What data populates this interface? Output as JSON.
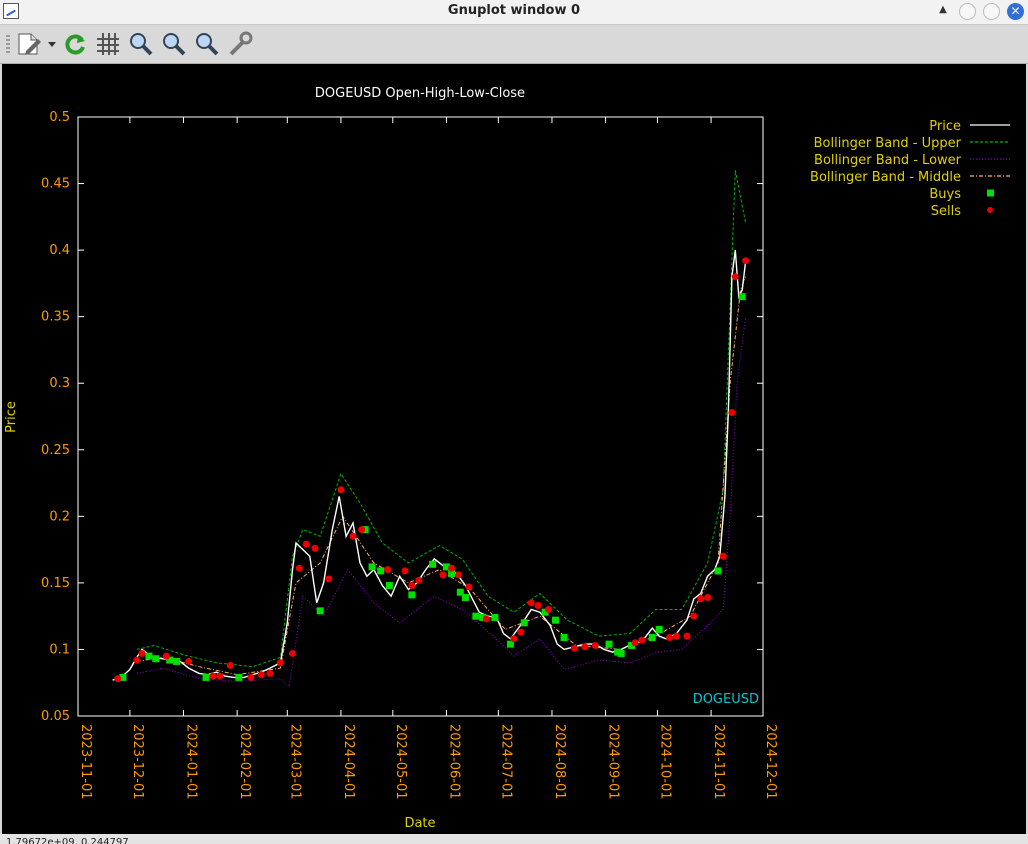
{
  "window": {
    "title": "Gnuplot window 0",
    "close_glyph": "✕",
    "up_glyph": "▲"
  },
  "toolbar": {
    "icons": [
      "export-menu-icon",
      "replot-icon",
      "grid-icon",
      "zoom-previous-icon",
      "zoom-next-icon",
      "autoscale-icon",
      "settings-icon"
    ]
  },
  "status": {
    "text": "1.79672e+09, 0.244797"
  },
  "colors": {
    "background": "#000000",
    "axis_label": "#e0d000",
    "tick_label": "#ff9900",
    "price": "#ffffff",
    "upper": "#00b300",
    "lower": "#9400d3",
    "middle": "#ffb060",
    "buys": "#00e000",
    "sells": "#ee0000",
    "symbol_label": "#00c8d0"
  },
  "chart_data": {
    "type": "line",
    "title": "DOGEUSD Open-High-Low-Close",
    "xlabel": "Date",
    "ylabel": "Price",
    "annotation": "DOGEUSD",
    "ylim": [
      0.05,
      0.5
    ],
    "yticks": [
      "0.05",
      "0.1",
      "0.15",
      "0.2",
      "0.25",
      "0.3",
      "0.35",
      "0.4",
      "0.45",
      "0.5"
    ],
    "xlim": [
      "2023-11-01",
      "2024-12-01"
    ],
    "xticks": [
      "2023-11-01",
      "2023-12-01",
      "2024-01-01",
      "2024-02-01",
      "2024-03-01",
      "2024-04-01",
      "2024-05-01",
      "2024-06-01",
      "2024-07-01",
      "2024-08-01",
      "2024-09-01",
      "2024-10-01",
      "2024-11-01",
      "2024-12-01"
    ],
    "grid": false,
    "legend_position": "top-right, outside",
    "legend": [
      "Price",
      "Bollinger Band - Upper",
      "Bollinger Band - Lower",
      "Bollinger Band - Middle",
      "Buys",
      "Sells"
    ],
    "price_close": [
      [
        "2023-11-21",
        0.077
      ],
      [
        "2023-11-26",
        0.079
      ],
      [
        "2023-12-01",
        0.085
      ],
      [
        "2023-12-05",
        0.094
      ],
      [
        "2023-12-08",
        0.1
      ],
      [
        "2023-12-11",
        0.097
      ],
      [
        "2023-12-15",
        0.094
      ],
      [
        "2023-12-20",
        0.093
      ],
      [
        "2023-12-25",
        0.092
      ],
      [
        "2023-12-30",
        0.091
      ],
      [
        "2024-01-04",
        0.086
      ],
      [
        "2024-01-10",
        0.082
      ],
      [
        "2024-01-15",
        0.081
      ],
      [
        "2024-01-20",
        0.083
      ],
      [
        "2024-01-25",
        0.08
      ],
      [
        "2024-01-30",
        0.079
      ],
      [
        "2024-02-05",
        0.079
      ],
      [
        "2024-02-10",
        0.081
      ],
      [
        "2024-02-15",
        0.083
      ],
      [
        "2024-02-20",
        0.086
      ],
      [
        "2024-02-26",
        0.09
      ],
      [
        "2024-03-01",
        0.12
      ],
      [
        "2024-03-04",
        0.16
      ],
      [
        "2024-03-06",
        0.18
      ],
      [
        "2024-03-10",
        0.175
      ],
      [
        "2024-03-14",
        0.17
      ],
      [
        "2024-03-18",
        0.135
      ],
      [
        "2024-03-22",
        0.15
      ],
      [
        "2024-03-27",
        0.19
      ],
      [
        "2024-03-31",
        0.215
      ],
      [
        "2024-04-04",
        0.185
      ],
      [
        "2024-04-08",
        0.195
      ],
      [
        "2024-04-12",
        0.165
      ],
      [
        "2024-04-16",
        0.155
      ],
      [
        "2024-04-20",
        0.16
      ],
      [
        "2024-04-25",
        0.148
      ],
      [
        "2024-04-30",
        0.14
      ],
      [
        "2024-05-05",
        0.155
      ],
      [
        "2024-05-10",
        0.145
      ],
      [
        "2024-05-15",
        0.15
      ],
      [
        "2024-05-20",
        0.16
      ],
      [
        "2024-05-25",
        0.168
      ],
      [
        "2024-05-30",
        0.163
      ],
      [
        "2024-06-04",
        0.16
      ],
      [
        "2024-06-08",
        0.155
      ],
      [
        "2024-06-12",
        0.148
      ],
      [
        "2024-06-16",
        0.138
      ],
      [
        "2024-06-20",
        0.128
      ],
      [
        "2024-06-25",
        0.125
      ],
      [
        "2024-06-30",
        0.124
      ],
      [
        "2024-07-04",
        0.112
      ],
      [
        "2024-07-08",
        0.108
      ],
      [
        "2024-07-12",
        0.115
      ],
      [
        "2024-07-16",
        0.122
      ],
      [
        "2024-07-20",
        0.13
      ],
      [
        "2024-07-25",
        0.128
      ],
      [
        "2024-07-31",
        0.118
      ],
      [
        "2024-08-04",
        0.104
      ],
      [
        "2024-08-08",
        0.1
      ],
      [
        "2024-08-14",
        0.102
      ],
      [
        "2024-08-20",
        0.104
      ],
      [
        "2024-08-26",
        0.104
      ],
      [
        "2024-08-31",
        0.1
      ],
      [
        "2024-09-05",
        0.098
      ],
      [
        "2024-09-10",
        0.1
      ],
      [
        "2024-09-16",
        0.104
      ],
      [
        "2024-09-22",
        0.106
      ],
      [
        "2024-09-28",
        0.116
      ],
      [
        "2024-10-02",
        0.11
      ],
      [
        "2024-10-06",
        0.108
      ],
      [
        "2024-10-12",
        0.112
      ],
      [
        "2024-10-18",
        0.122
      ],
      [
        "2024-10-22",
        0.138
      ],
      [
        "2024-10-26",
        0.142
      ],
      [
        "2024-10-30",
        0.155
      ],
      [
        "2024-11-03",
        0.16
      ],
      [
        "2024-11-06",
        0.17
      ],
      [
        "2024-11-09",
        0.215
      ],
      [
        "2024-11-11",
        0.28
      ],
      [
        "2024-11-13",
        0.38
      ],
      [
        "2024-11-15",
        0.4
      ],
      [
        "2024-11-17",
        0.365
      ],
      [
        "2024-11-19",
        0.37
      ],
      [
        "2024-11-21",
        0.392
      ]
    ],
    "bollinger_upper": [
      [
        "2023-12-05",
        0.1
      ],
      [
        "2023-12-15",
        0.103
      ],
      [
        "2024-01-01",
        0.096
      ],
      [
        "2024-01-20",
        0.09
      ],
      [
        "2024-02-10",
        0.087
      ],
      [
        "2024-02-26",
        0.094
      ],
      [
        "2024-03-04",
        0.17
      ],
      [
        "2024-03-10",
        0.19
      ],
      [
        "2024-03-20",
        0.185
      ],
      [
        "2024-04-01",
        0.232
      ],
      [
        "2024-04-12",
        0.21
      ],
      [
        "2024-04-25",
        0.18
      ],
      [
        "2024-05-10",
        0.165
      ],
      [
        "2024-05-28",
        0.178
      ],
      [
        "2024-06-10",
        0.168
      ],
      [
        "2024-06-25",
        0.14
      ],
      [
        "2024-07-10",
        0.128
      ],
      [
        "2024-07-25",
        0.142
      ],
      [
        "2024-08-10",
        0.122
      ],
      [
        "2024-08-28",
        0.11
      ],
      [
        "2024-09-15",
        0.112
      ],
      [
        "2024-09-30",
        0.13
      ],
      [
        "2024-10-15",
        0.13
      ],
      [
        "2024-10-30",
        0.165
      ],
      [
        "2024-11-08",
        0.22
      ],
      [
        "2024-11-15",
        0.46
      ],
      [
        "2024-11-21",
        0.42
      ]
    ],
    "bollinger_lower": [
      [
        "2023-12-05",
        0.082
      ],
      [
        "2023-12-20",
        0.086
      ],
      [
        "2024-01-10",
        0.078
      ],
      [
        "2024-02-01",
        0.076
      ],
      [
        "2024-02-26",
        0.078
      ],
      [
        "2024-03-02",
        0.072
      ],
      [
        "2024-03-10",
        0.14
      ],
      [
        "2024-03-22",
        0.125
      ],
      [
        "2024-04-05",
        0.16
      ],
      [
        "2024-04-20",
        0.135
      ],
      [
        "2024-05-05",
        0.12
      ],
      [
        "2024-05-25",
        0.14
      ],
      [
        "2024-06-10",
        0.13
      ],
      [
        "2024-06-28",
        0.11
      ],
      [
        "2024-07-10",
        0.095
      ],
      [
        "2024-07-25",
        0.108
      ],
      [
        "2024-08-08",
        0.085
      ],
      [
        "2024-08-28",
        0.092
      ],
      [
        "2024-09-15",
        0.09
      ],
      [
        "2024-10-01",
        0.098
      ],
      [
        "2024-10-15",
        0.1
      ],
      [
        "2024-10-30",
        0.118
      ],
      [
        "2024-11-08",
        0.13
      ],
      [
        "2024-11-12",
        0.2
      ],
      [
        "2024-11-16",
        0.3
      ],
      [
        "2024-11-21",
        0.35
      ]
    ],
    "bollinger_middle": [
      [
        "2023-12-05",
        0.091
      ],
      [
        "2023-12-20",
        0.094
      ],
      [
        "2024-01-10",
        0.087
      ],
      [
        "2024-02-01",
        0.081
      ],
      [
        "2024-02-26",
        0.086
      ],
      [
        "2024-03-06",
        0.15
      ],
      [
        "2024-03-20",
        0.165
      ],
      [
        "2024-04-02",
        0.2
      ],
      [
        "2024-04-20",
        0.165
      ],
      [
        "2024-05-10",
        0.15
      ],
      [
        "2024-05-28",
        0.16
      ],
      [
        "2024-06-15",
        0.145
      ],
      [
        "2024-07-05",
        0.115
      ],
      [
        "2024-07-25",
        0.125
      ],
      [
        "2024-08-15",
        0.103
      ],
      [
        "2024-09-10",
        0.1
      ],
      [
        "2024-09-30",
        0.11
      ],
      [
        "2024-10-20",
        0.125
      ],
      [
        "2024-11-05",
        0.165
      ],
      [
        "2024-11-12",
        0.3
      ],
      [
        "2024-11-18",
        0.37
      ],
      [
        "2024-11-21",
        0.38
      ]
    ],
    "buys": [
      [
        "2023-11-27",
        0.079
      ],
      [
        "2023-12-12",
        0.095
      ],
      [
        "2023-12-16",
        0.093
      ],
      [
        "2023-12-24",
        0.092
      ],
      [
        "2023-12-28",
        0.091
      ],
      [
        "2024-01-14",
        0.079
      ],
      [
        "2024-02-02",
        0.079
      ],
      [
        "2024-03-20",
        0.129
      ],
      [
        "2024-04-15",
        0.19
      ],
      [
        "2024-04-19",
        0.162
      ],
      [
        "2024-04-24",
        0.159
      ],
      [
        "2024-04-29",
        0.148
      ],
      [
        "2024-05-12",
        0.141
      ],
      [
        "2024-05-24",
        0.164
      ],
      [
        "2024-06-01",
        0.162
      ],
      [
        "2024-06-04",
        0.157
      ],
      [
        "2024-06-09",
        0.143
      ],
      [
        "2024-06-12",
        0.139
      ],
      [
        "2024-06-18",
        0.125
      ],
      [
        "2024-06-22",
        0.124
      ],
      [
        "2024-06-29",
        0.124
      ],
      [
        "2024-07-08",
        0.104
      ],
      [
        "2024-07-16",
        0.12
      ],
      [
        "2024-07-28",
        0.128
      ],
      [
        "2024-08-03",
        0.122
      ],
      [
        "2024-08-08",
        0.109
      ],
      [
        "2024-09-03",
        0.104
      ],
      [
        "2024-09-08",
        0.098
      ],
      [
        "2024-09-10",
        0.097
      ],
      [
        "2024-09-16",
        0.103
      ],
      [
        "2024-09-28",
        0.109
      ],
      [
        "2024-10-02",
        0.115
      ],
      [
        "2024-11-05",
        0.159
      ],
      [
        "2024-11-19",
        0.365
      ]
    ],
    "sells": [
      [
        "2023-11-24",
        0.078
      ],
      [
        "2023-12-05",
        0.092
      ],
      [
        "2023-12-08",
        0.097
      ],
      [
        "2023-12-22",
        0.095
      ],
      [
        "2024-01-04",
        0.091
      ],
      [
        "2024-01-18",
        0.08
      ],
      [
        "2024-01-22",
        0.08
      ],
      [
        "2024-01-28",
        0.088
      ],
      [
        "2024-02-09",
        0.079
      ],
      [
        "2024-02-15",
        0.081
      ],
      [
        "2024-02-20",
        0.082
      ],
      [
        "2024-02-26",
        0.09
      ],
      [
        "2024-03-04",
        0.097
      ],
      [
        "2024-03-08",
        0.161
      ],
      [
        "2024-03-12",
        0.179
      ],
      [
        "2024-03-17",
        0.176
      ],
      [
        "2024-03-25",
        0.153
      ],
      [
        "2024-04-01",
        0.22
      ],
      [
        "2024-04-08",
        0.185
      ],
      [
        "2024-04-13",
        0.19
      ],
      [
        "2024-04-28",
        0.16
      ],
      [
        "2024-05-08",
        0.159
      ],
      [
        "2024-05-12",
        0.148
      ],
      [
        "2024-05-16",
        0.152
      ],
      [
        "2024-05-30",
        0.156
      ],
      [
        "2024-06-04",
        0.161
      ],
      [
        "2024-06-08",
        0.156
      ],
      [
        "2024-06-14",
        0.147
      ],
      [
        "2024-06-24",
        0.123
      ],
      [
        "2024-07-10",
        0.108
      ],
      [
        "2024-07-14",
        0.113
      ],
      [
        "2024-07-20",
        0.135
      ],
      [
        "2024-07-24",
        0.133
      ],
      [
        "2024-07-30",
        0.13
      ],
      [
        "2024-08-14",
        0.101
      ],
      [
        "2024-08-20",
        0.102
      ],
      [
        "2024-08-26",
        0.103
      ],
      [
        "2024-09-18",
        0.105
      ],
      [
        "2024-09-22",
        0.107
      ],
      [
        "2024-10-08",
        0.109
      ],
      [
        "2024-10-12",
        0.11
      ],
      [
        "2024-10-18",
        0.11
      ],
      [
        "2024-10-22",
        0.125
      ],
      [
        "2024-10-26",
        0.138
      ],
      [
        "2024-10-30",
        0.139
      ],
      [
        "2024-11-08",
        0.17
      ],
      [
        "2024-11-13",
        0.278
      ],
      [
        "2024-11-15",
        0.38
      ],
      [
        "2024-11-21",
        0.392
      ]
    ]
  }
}
